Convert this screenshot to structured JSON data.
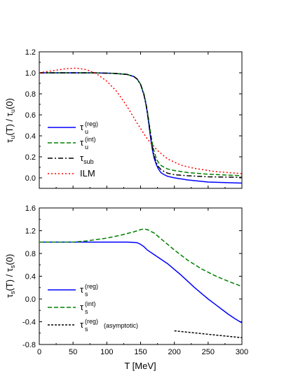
{
  "chart_data": [
    {
      "type": "line",
      "ylabel": "τ_u(T) / τ_u(0)",
      "xlim": [
        0,
        300
      ],
      "ylim": [
        -0.1,
        1.2
      ],
      "xticks": [
        0,
        50,
        100,
        150,
        200,
        250,
        300
      ],
      "yticks": [
        0.0,
        0.2,
        0.4,
        0.6,
        0.8,
        1.0,
        1.2
      ],
      "xtick_labels": [
        "0",
        "50",
        "100",
        "150",
        "200",
        "250",
        "300"
      ],
      "ytick_labels": [
        "0.0",
        "0.2",
        "0.4",
        "0.6",
        "0.8",
        "1.0",
        "1.2"
      ],
      "legend_position": "bottom-left",
      "series": [
        {
          "name": "τ_u^(reg)",
          "name_base": "τ",
          "name_sub": "u",
          "name_sup": "(reg)",
          "color": "#0000ff",
          "dash": "solid",
          "x": [
            0,
            40,
            80,
            110,
            130,
            140,
            145,
            150,
            155,
            158,
            160,
            162,
            164,
            166,
            168,
            170,
            173,
            176,
            180,
            185,
            190,
            200,
            220,
            250,
            300
          ],
          "y": [
            1.0,
            1.0,
            1.0,
            0.995,
            0.985,
            0.965,
            0.94,
            0.89,
            0.79,
            0.7,
            0.62,
            0.52,
            0.42,
            0.33,
            0.25,
            0.19,
            0.13,
            0.09,
            0.05,
            0.03,
            0.015,
            0.0,
            -0.02,
            -0.04,
            -0.05
          ]
        },
        {
          "name": "τ_u^(int)",
          "name_base": "τ",
          "name_sub": "u",
          "name_sup": "(int)",
          "color": "#008000",
          "dash": "dashed",
          "x": [
            0,
            40,
            80,
            110,
            130,
            140,
            145,
            150,
            155,
            158,
            160,
            162,
            164,
            166,
            168,
            170,
            173,
            176,
            180,
            185,
            190,
            200,
            220,
            250,
            300
          ],
          "y": [
            1.0,
            1.0,
            1.0,
            0.995,
            0.985,
            0.965,
            0.94,
            0.89,
            0.8,
            0.71,
            0.64,
            0.55,
            0.46,
            0.38,
            0.31,
            0.25,
            0.19,
            0.15,
            0.12,
            0.1,
            0.085,
            0.07,
            0.05,
            0.035,
            0.02
          ]
        },
        {
          "name": "τ_sub",
          "name_base": "τ",
          "name_sub": "sub",
          "name_sup": "",
          "color": "#000000",
          "dash": "dashdot",
          "x": [
            0,
            40,
            80,
            110,
            130,
            140,
            145,
            150,
            155,
            158,
            160,
            162,
            164,
            166,
            168,
            170,
            173,
            176,
            180,
            185,
            190,
            200,
            220,
            250,
            300
          ],
          "y": [
            1.0,
            1.0,
            1.0,
            0.995,
            0.985,
            0.965,
            0.94,
            0.89,
            0.79,
            0.7,
            0.62,
            0.53,
            0.44,
            0.35,
            0.27,
            0.21,
            0.15,
            0.11,
            0.08,
            0.06,
            0.045,
            0.03,
            0.02,
            0.01,
            0.005
          ]
        },
        {
          "name": "ILM",
          "name_base": "ILM",
          "name_sub": "",
          "name_sup": "",
          "color": "#ff0000",
          "dash": "dotted",
          "x": [
            0,
            20,
            40,
            55,
            70,
            85,
            100,
            115,
            130,
            145,
            160,
            175,
            190,
            210,
            230,
            260,
            300
          ],
          "y": [
            1.0,
            1.02,
            1.04,
            1.045,
            1.03,
            0.99,
            0.92,
            0.82,
            0.68,
            0.52,
            0.37,
            0.26,
            0.18,
            0.12,
            0.09,
            0.06,
            0.04
          ]
        }
      ]
    },
    {
      "type": "line",
      "xlabel": "T [MeV]",
      "ylabel": "τ_s(T) / τ_s(0)",
      "xlim": [
        0,
        300
      ],
      "ylim": [
        -0.8,
        1.6
      ],
      "xticks": [
        0,
        50,
        100,
        150,
        200,
        250,
        300
      ],
      "yticks": [
        -0.8,
        -0.4,
        0.0,
        0.4,
        0.8,
        1.2,
        1.6
      ],
      "xtick_labels": [
        "0",
        "50",
        "100",
        "150",
        "200",
        "250",
        "300"
      ],
      "ytick_labels": [
        "-0.8",
        "-0.4",
        "0.0",
        "0.4",
        "0.8",
        "1.2",
        "1.6"
      ],
      "legend_position": "bottom-left",
      "series": [
        {
          "name": "τ_s^(reg)",
          "name_base": "τ",
          "name_sub": "s",
          "name_sup": "(reg)",
          "color": "#0000ff",
          "dash": "solid",
          "x": [
            0,
            50,
            100,
            130,
            145,
            150,
            155,
            160,
            170,
            180,
            190,
            200,
            210,
            220,
            230,
            240,
            250,
            260,
            270,
            280,
            290,
            300
          ],
          "y": [
            1.0,
            1.0,
            1.0,
            1.0,
            0.99,
            0.96,
            0.92,
            0.86,
            0.78,
            0.7,
            0.62,
            0.52,
            0.42,
            0.31,
            0.2,
            0.1,
            0.0,
            -0.09,
            -0.18,
            -0.27,
            -0.35,
            -0.42
          ]
        },
        {
          "name": "τ_s^(int)",
          "name_base": "τ",
          "name_sub": "s",
          "name_sup": "(int)",
          "color": "#008000",
          "dash": "dashed",
          "x": [
            0,
            50,
            70,
            100,
            120,
            140,
            150,
            155,
            160,
            170,
            180,
            200,
            220,
            240,
            260,
            280,
            300
          ],
          "y": [
            1.0,
            1.0,
            1.02,
            1.07,
            1.12,
            1.18,
            1.22,
            1.23,
            1.22,
            1.16,
            1.06,
            0.86,
            0.68,
            0.53,
            0.41,
            0.31,
            0.22
          ]
        },
        {
          "name": "τ_s^(reg)(asymptotic)",
          "name_base": "τ",
          "name_sub": "s",
          "name_sup": "(reg)",
          "name_suffix": "(asymptotic)",
          "color": "#000000",
          "dash": "shortdash",
          "x": [
            200,
            250,
            300
          ],
          "y": [
            -0.56,
            -0.62,
            -0.68
          ]
        }
      ]
    }
  ]
}
